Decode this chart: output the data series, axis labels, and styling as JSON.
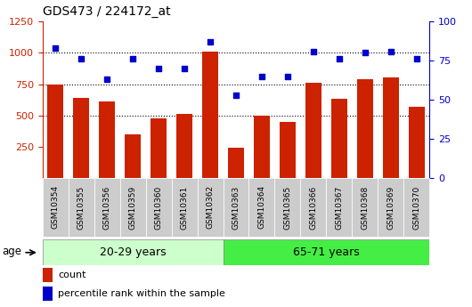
{
  "title": "GDS473 / 224172_at",
  "categories": [
    "GSM10354",
    "GSM10355",
    "GSM10356",
    "GSM10359",
    "GSM10360",
    "GSM10361",
    "GSM10362",
    "GSM10363",
    "GSM10364",
    "GSM10365",
    "GSM10366",
    "GSM10367",
    "GSM10368",
    "GSM10369",
    "GSM10370"
  ],
  "bar_values": [
    750,
    640,
    610,
    350,
    480,
    510,
    1010,
    240,
    500,
    450,
    760,
    630,
    790,
    800,
    570
  ],
  "dot_values": [
    83,
    76,
    63,
    76,
    70,
    70,
    87,
    53,
    65,
    65,
    81,
    76,
    80,
    81,
    76
  ],
  "bar_color": "#cc2200",
  "dot_color": "#0000cc",
  "group1_label": "20-29 years",
  "group2_label": "65-71 years",
  "group1_count": 7,
  "group2_count": 8,
  "group1_bg": "#ccffcc",
  "group2_bg": "#44ee44",
  "xlabel_bg": "#cccccc",
  "ylim_left": [
    0,
    1250
  ],
  "ylim_right": [
    0,
    100
  ],
  "yticks_left": [
    250,
    500,
    750,
    1000,
    1250
  ],
  "yticks_right": [
    0,
    25,
    50,
    75,
    100
  ],
  "grid_values": [
    500,
    750,
    1000
  ],
  "legend_count_label": "count",
  "legend_pct_label": "percentile rank within the sample",
  "age_label": "age"
}
